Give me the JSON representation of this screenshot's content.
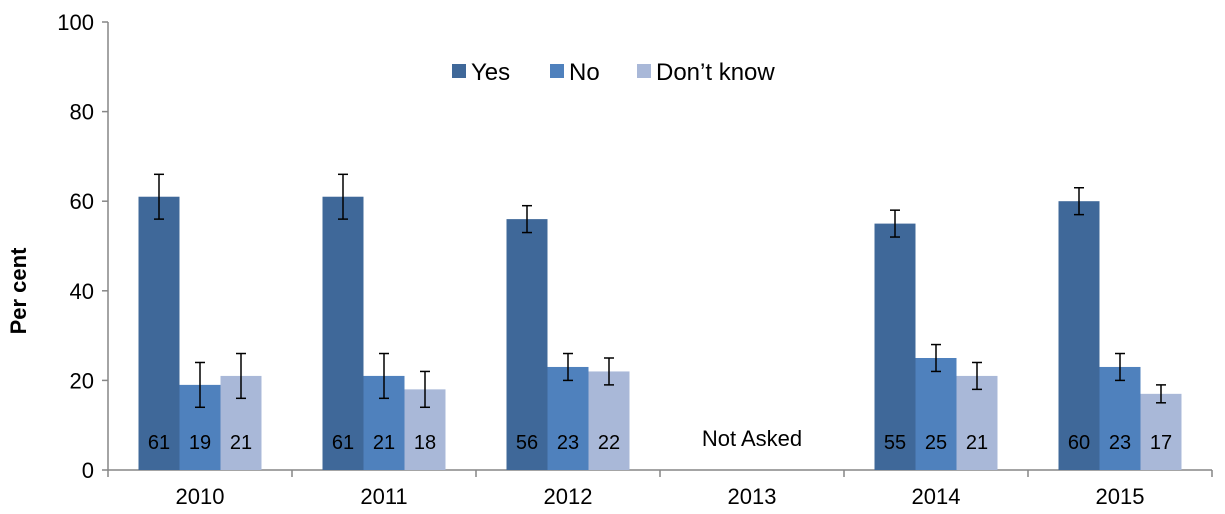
{
  "chart_data": {
    "type": "bar",
    "ylabel": "Per cent",
    "xlabel": "",
    "ylim": [
      0,
      100
    ],
    "yticks": [
      0,
      20,
      40,
      60,
      80,
      100
    ],
    "grid": false,
    "legend_position": "top-center",
    "categories": [
      "2010",
      "2011",
      "2012",
      "2013",
      "2014",
      "2015"
    ],
    "series": [
      {
        "name": "Yes",
        "color": "#3F6899",
        "values": [
          61,
          61,
          56,
          null,
          55,
          60
        ],
        "error_low": [
          56,
          56,
          53,
          null,
          52,
          57
        ],
        "error_high": [
          66,
          66,
          59,
          null,
          58,
          63
        ]
      },
      {
        "name": "No",
        "color": "#4F81BD",
        "values": [
          19,
          21,
          23,
          null,
          25,
          23
        ],
        "error_low": [
          14,
          16,
          20,
          null,
          22,
          20
        ],
        "error_high": [
          24,
          26,
          26,
          null,
          28,
          26
        ]
      },
      {
        "name": "Don’t know",
        "color": "#A9B8D8",
        "values": [
          21,
          18,
          22,
          null,
          21,
          17
        ],
        "error_low": [
          16,
          14,
          19,
          null,
          18,
          15
        ],
        "error_high": [
          26,
          22,
          25,
          null,
          24,
          19
        ]
      }
    ],
    "annotations": [
      {
        "category": "2013",
        "text": "Not Asked"
      }
    ]
  }
}
